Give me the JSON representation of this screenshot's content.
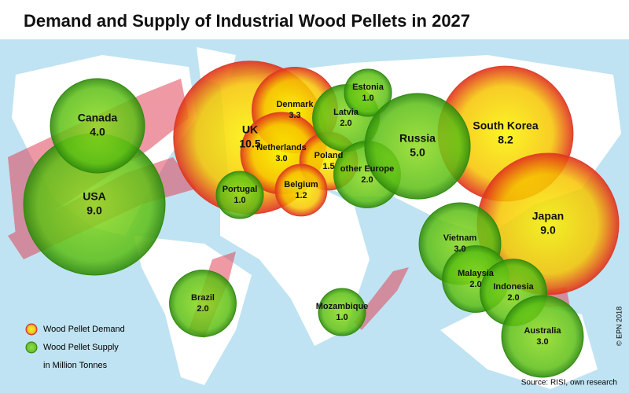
{
  "title": "Demand and Supply of Industrial Wood Pellets in 2027",
  "legend": {
    "demand": "Wood Pellet Demand",
    "supply": "Wood Pellet Supply",
    "unit": "in Million Tonnes"
  },
  "source": "Source: RISI, own research",
  "copyright": "© EPN 2018",
  "bubbles": [
    {
      "name": "UK",
      "value": 10.5,
      "value_label": "10.5",
      "kind": "demand"
    },
    {
      "name": "South Korea",
      "value": 8.2,
      "value_label": "8.2",
      "kind": "demand"
    },
    {
      "name": "Japan",
      "value": 9,
      "value_label": "9.0",
      "kind": "demand"
    },
    {
      "name": "Denmark",
      "value": 3.3,
      "value_label": "3.3",
      "kind": "demand"
    },
    {
      "name": "Netherlands",
      "value": 3,
      "value_label": "3.0",
      "kind": "demand"
    },
    {
      "name": "Poland",
      "value": 1.5,
      "value_label": "1.5",
      "kind": "demand"
    },
    {
      "name": "Belgium",
      "value": 1.2,
      "value_label": "1.2",
      "kind": "demand"
    },
    {
      "name": "USA",
      "value": 9,
      "value_label": "9.0",
      "kind": "supply"
    },
    {
      "name": "Canada",
      "value": 4,
      "value_label": "4.0",
      "kind": "supply"
    },
    {
      "name": "Portugal",
      "value": 1,
      "value_label": "1.0",
      "kind": "supply"
    },
    {
      "name": "Latvia",
      "value": 2,
      "value_label": "2.0",
      "kind": "supply"
    },
    {
      "name": "Estonia",
      "value": 1,
      "value_label": "1.0",
      "kind": "supply"
    },
    {
      "name": "other Europe",
      "value": 2,
      "value_label": "2.0",
      "kind": "supply"
    },
    {
      "name": "Russia",
      "value": 5,
      "value_label": "5.0",
      "kind": "supply"
    },
    {
      "name": "Vietnam",
      "value": 3,
      "value_label": "3.0",
      "kind": "supply"
    },
    {
      "name": "Malaysia",
      "value": 2,
      "value_label": "2.0",
      "kind": "supply"
    },
    {
      "name": "Indonesia",
      "value": 2,
      "value_label": "2.0",
      "kind": "supply"
    },
    {
      "name": "Australia",
      "value": 3,
      "value_label": "3.0",
      "kind": "supply"
    },
    {
      "name": "Brazil",
      "value": 2,
      "value_label": "2.0",
      "kind": "supply"
    },
    {
      "name": "Mozambique",
      "value": 1,
      "value_label": "1.0",
      "kind": "supply"
    }
  ]
}
